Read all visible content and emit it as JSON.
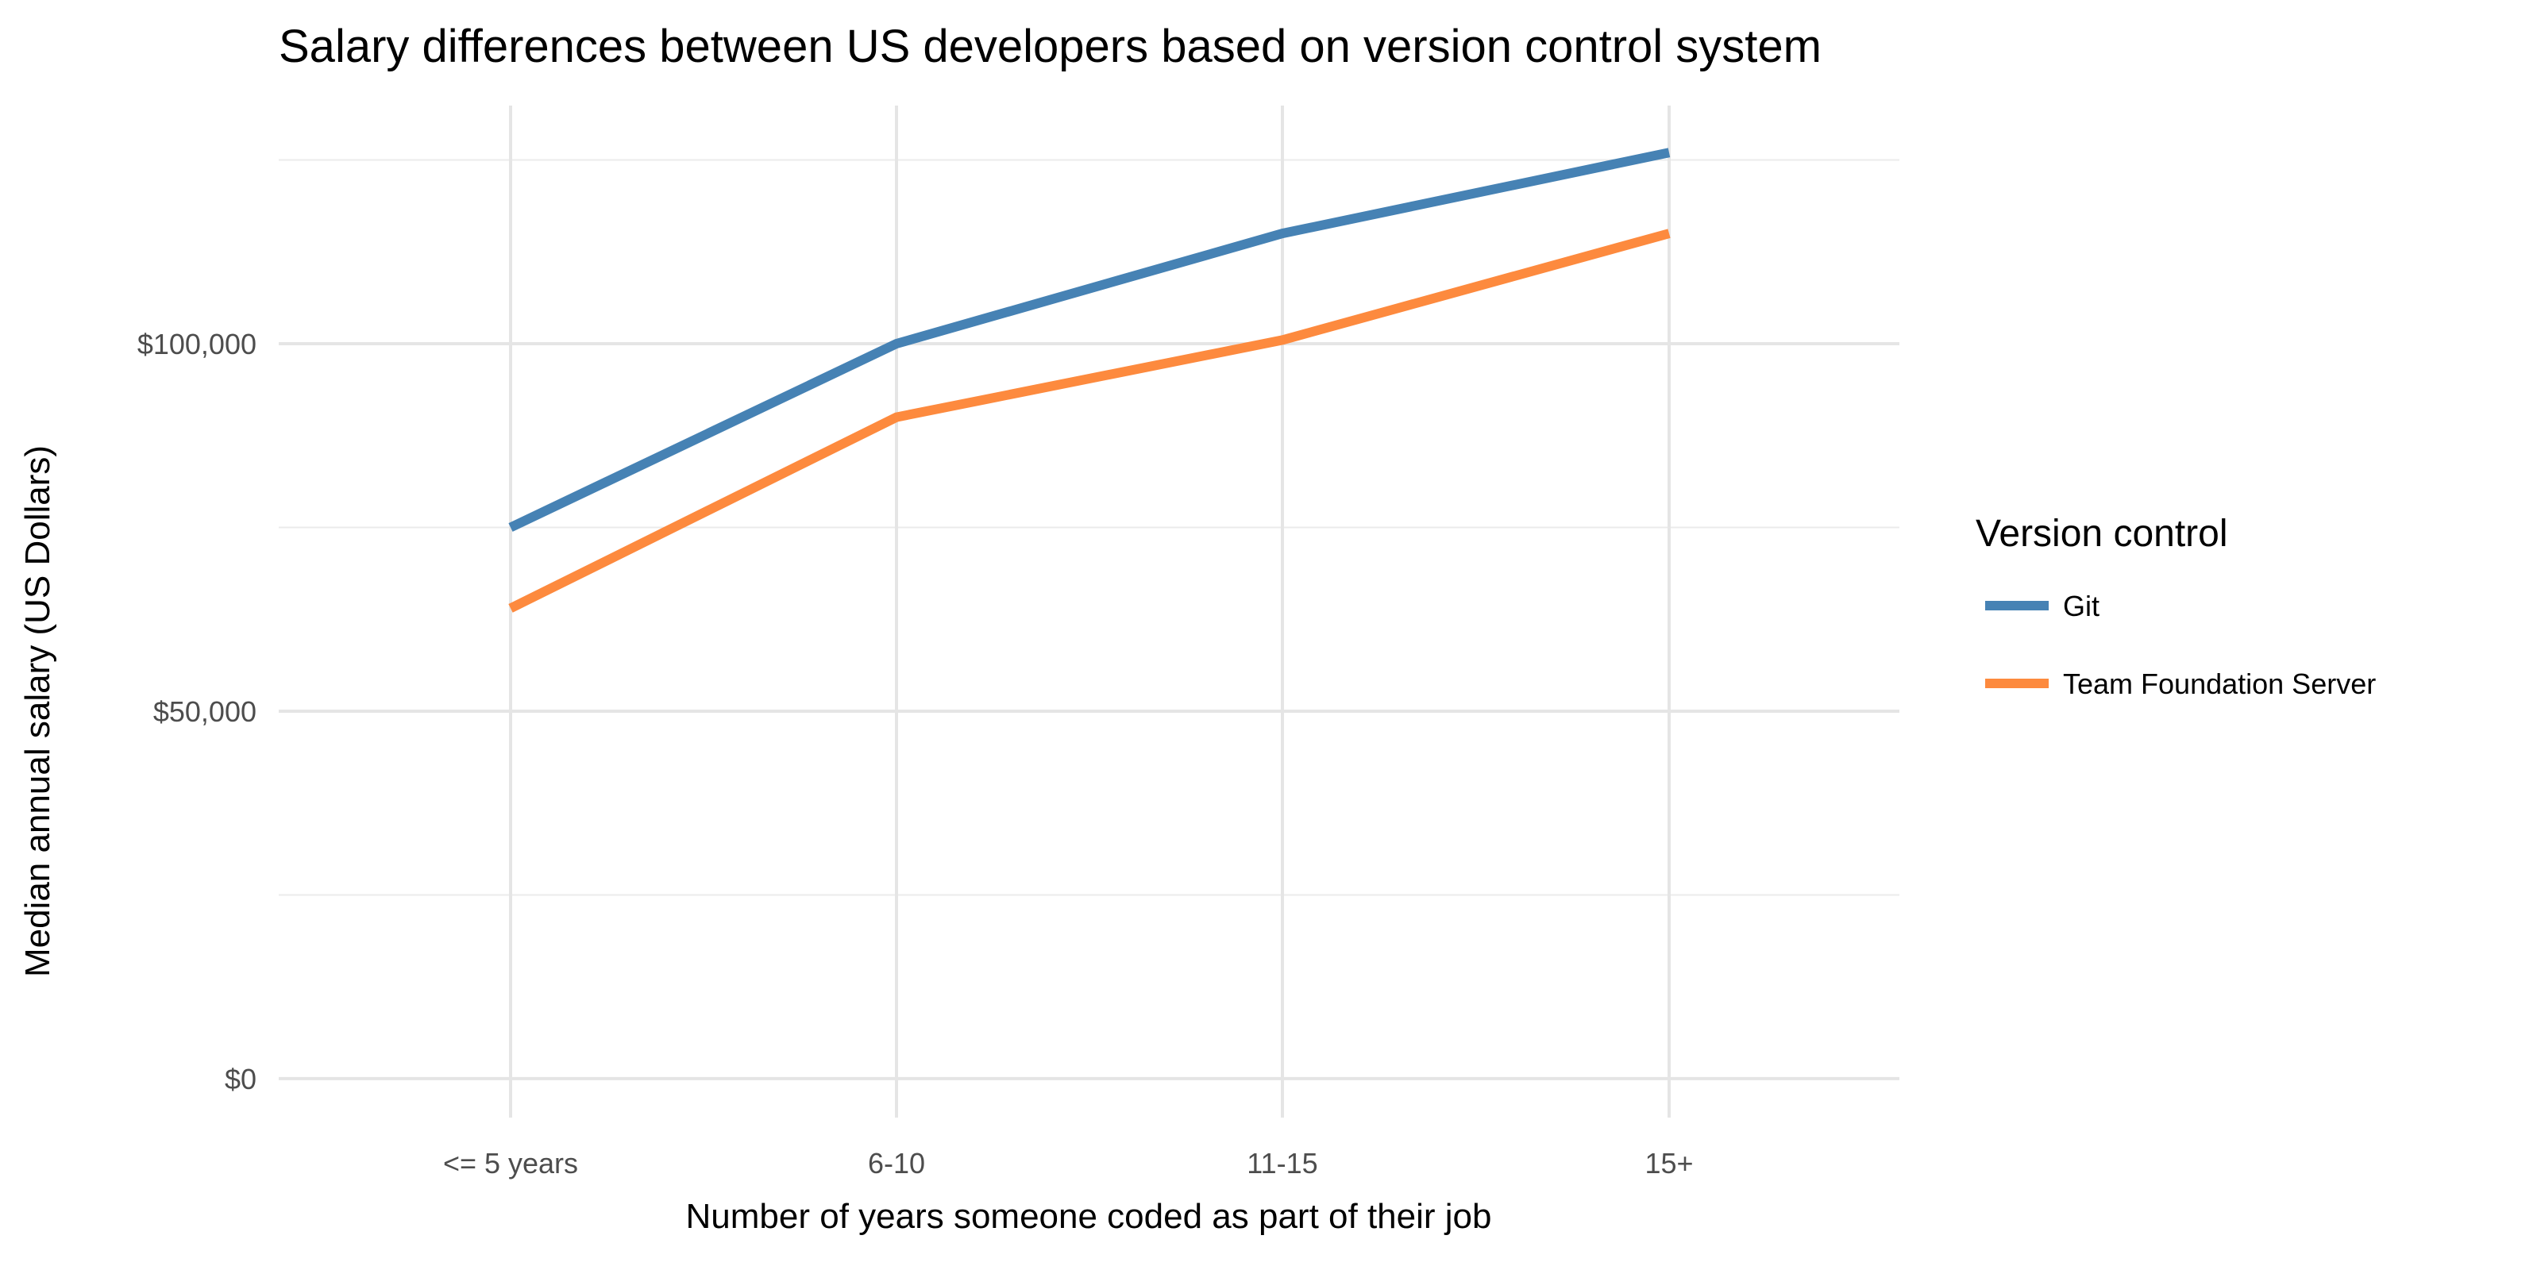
{
  "chart_data": {
    "type": "line",
    "title": "Salary differences between US developers based on version control system",
    "xlabel": "Number of years someone coded as part of their job",
    "ylabel": "Median annual salary (US Dollars)",
    "categories": [
      "<= 5 years",
      "6-10",
      "11-15",
      "15+"
    ],
    "y_ticks": [
      0,
      50000,
      100000
    ],
    "y_tick_labels": [
      "$0",
      "$50,000",
      "$100,000"
    ],
    "y_minor_gridlines": [
      25000,
      75000,
      125000
    ],
    "ylim": [
      -5300,
      132400
    ],
    "grid": true,
    "legend": {
      "title": "Version control",
      "position": "right"
    },
    "series": [
      {
        "name": "Git",
        "color": "#4682b4",
        "values": [
          75000,
          100000,
          115000,
          126000
        ]
      },
      {
        "name": "Team Foundation Server",
        "color": "#fd8a3e",
        "values": [
          64000,
          90000,
          100500,
          115000
        ]
      }
    ]
  }
}
